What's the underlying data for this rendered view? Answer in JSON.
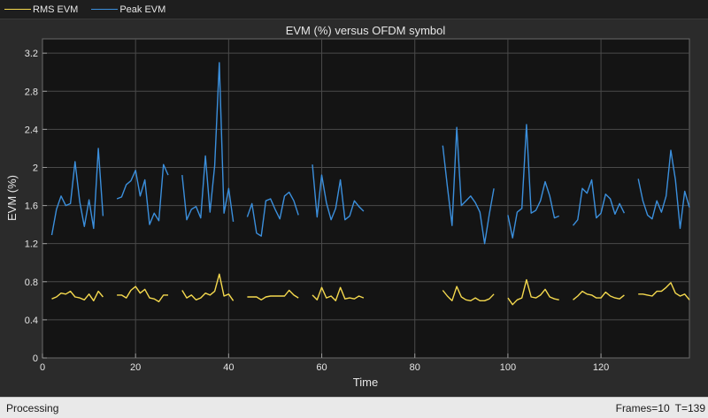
{
  "legend": {
    "items": [
      {
        "label": "RMS EVM",
        "color": "#f5d94e"
      },
      {
        "label": "Peak EVM",
        "color": "#3b8fdc"
      }
    ]
  },
  "status": {
    "state": "Processing",
    "frames": "Frames=10",
    "time": "T=139"
  },
  "chart_data": {
    "type": "line",
    "title": "EVM (%) versus OFDM symbol",
    "xlabel": "Time",
    "ylabel": "EVM (%)",
    "xlim": [
      0,
      139
    ],
    "ylim": [
      0,
      3.35
    ],
    "xticks": [
      0,
      20,
      40,
      60,
      80,
      100,
      120
    ],
    "yticks": [
      0,
      0.4,
      0.8,
      1.2,
      1.6,
      2,
      2.4,
      2.8,
      3.2
    ],
    "grid": true,
    "background": "#141414",
    "series": [
      {
        "name": "RMS EVM",
        "color": "#f5d94e",
        "segments": [
          [
            [
              2,
              0.62
            ],
            [
              3,
              0.64
            ],
            [
              4,
              0.68
            ],
            [
              5,
              0.67
            ],
            [
              6,
              0.7
            ],
            [
              7,
              0.64
            ],
            [
              8,
              0.63
            ],
            [
              9,
              0.61
            ],
            [
              10,
              0.67
            ],
            [
              11,
              0.6
            ],
            [
              12,
              0.7
            ],
            [
              13,
              0.64
            ]
          ],
          [
            [
              16,
              0.66
            ],
            [
              17,
              0.66
            ],
            [
              18,
              0.63
            ],
            [
              19,
              0.71
            ],
            [
              20,
              0.75
            ],
            [
              21,
              0.68
            ],
            [
              22,
              0.72
            ],
            [
              23,
              0.63
            ],
            [
              24,
              0.62
            ],
            [
              25,
              0.59
            ],
            [
              26,
              0.66
            ],
            [
              27,
              0.66
            ]
          ],
          [
            [
              30,
              0.71
            ],
            [
              31,
              0.63
            ],
            [
              32,
              0.66
            ],
            [
              33,
              0.61
            ],
            [
              34,
              0.63
            ],
            [
              35,
              0.68
            ],
            [
              36,
              0.66
            ],
            [
              37,
              0.7
            ],
            [
              38,
              0.88
            ],
            [
              39,
              0.65
            ],
            [
              40,
              0.67
            ],
            [
              41,
              0.6
            ]
          ],
          [
            [
              44,
              0.64
            ],
            [
              45,
              0.64
            ],
            [
              46,
              0.64
            ],
            [
              47,
              0.61
            ],
            [
              48,
              0.64
            ],
            [
              49,
              0.65
            ],
            [
              50,
              0.65
            ],
            [
              51,
              0.65
            ],
            [
              52,
              0.65
            ],
            [
              53,
              0.71
            ],
            [
              54,
              0.66
            ],
            [
              55,
              0.63
            ]
          ],
          [
            [
              58,
              0.66
            ],
            [
              59,
              0.61
            ],
            [
              60,
              0.74
            ],
            [
              61,
              0.63
            ],
            [
              62,
              0.65
            ],
            [
              63,
              0.6
            ],
            [
              64,
              0.74
            ],
            [
              65,
              0.62
            ],
            [
              66,
              0.63
            ],
            [
              67,
              0.62
            ],
            [
              68,
              0.65
            ],
            [
              69,
              0.63
            ]
          ],
          [
            [
              86,
              0.71
            ],
            [
              87,
              0.65
            ],
            [
              88,
              0.6
            ],
            [
              89,
              0.75
            ],
            [
              90,
              0.64
            ],
            [
              91,
              0.61
            ],
            [
              92,
              0.6
            ],
            [
              93,
              0.63
            ],
            [
              94,
              0.6
            ],
            [
              95,
              0.6
            ],
            [
              96,
              0.62
            ],
            [
              97,
              0.67
            ]
          ],
          [
            [
              100,
              0.63
            ],
            [
              101,
              0.56
            ],
            [
              102,
              0.61
            ],
            [
              103,
              0.63
            ],
            [
              104,
              0.82
            ],
            [
              105,
              0.64
            ],
            [
              106,
              0.63
            ],
            [
              107,
              0.66
            ],
            [
              108,
              0.72
            ],
            [
              109,
              0.64
            ],
            [
              110,
              0.62
            ],
            [
              111,
              0.61
            ]
          ],
          [
            [
              114,
              0.61
            ],
            [
              115,
              0.65
            ],
            [
              116,
              0.7
            ],
            [
              117,
              0.67
            ],
            [
              118,
              0.66
            ],
            [
              119,
              0.63
            ],
            [
              120,
              0.63
            ],
            [
              121,
              0.69
            ],
            [
              122,
              0.65
            ],
            [
              123,
              0.63
            ],
            [
              124,
              0.62
            ],
            [
              125,
              0.66
            ]
          ],
          [
            [
              128,
              0.67
            ],
            [
              129,
              0.67
            ],
            [
              130,
              0.66
            ],
            [
              131,
              0.65
            ],
            [
              132,
              0.7
            ],
            [
              133,
              0.7
            ],
            [
              134,
              0.74
            ],
            [
              135,
              0.79
            ],
            [
              136,
              0.68
            ],
            [
              137,
              0.65
            ],
            [
              138,
              0.67
            ],
            [
              139,
              0.61
            ]
          ]
        ]
      },
      {
        "name": "Peak EVM",
        "color": "#3b8fdc",
        "segments": [
          [
            [
              2,
              1.29
            ],
            [
              3,
              1.56
            ],
            [
              4,
              1.7
            ],
            [
              5,
              1.6
            ],
            [
              6,
              1.62
            ],
            [
              7,
              2.06
            ],
            [
              8,
              1.64
            ],
            [
              9,
              1.38
            ],
            [
              10,
              1.66
            ],
            [
              11,
              1.36
            ],
            [
              12,
              2.2
            ],
            [
              13,
              1.49
            ]
          ],
          [
            [
              16,
              1.67
            ],
            [
              17,
              1.69
            ],
            [
              18,
              1.82
            ],
            [
              19,
              1.86
            ],
            [
              20,
              1.97
            ],
            [
              21,
              1.7
            ],
            [
              22,
              1.87
            ],
            [
              23,
              1.4
            ],
            [
              24,
              1.52
            ],
            [
              25,
              1.44
            ],
            [
              26,
              2.03
            ],
            [
              27,
              1.92
            ]
          ],
          [
            [
              30,
              1.92
            ],
            [
              31,
              1.45
            ],
            [
              32,
              1.56
            ],
            [
              33,
              1.59
            ],
            [
              34,
              1.47
            ],
            [
              35,
              2.12
            ],
            [
              36,
              1.53
            ],
            [
              37,
              2.02
            ],
            [
              38,
              3.1
            ],
            [
              39,
              1.52
            ],
            [
              40,
              1.78
            ],
            [
              41,
              1.43
            ]
          ],
          [
            [
              44,
              1.48
            ],
            [
              45,
              1.62
            ],
            [
              46,
              1.31
            ],
            [
              47,
              1.28
            ],
            [
              48,
              1.65
            ],
            [
              49,
              1.67
            ],
            [
              50,
              1.56
            ],
            [
              51,
              1.46
            ],
            [
              52,
              1.7
            ],
            [
              53,
              1.74
            ],
            [
              54,
              1.65
            ],
            [
              55,
              1.5
            ]
          ],
          [
            [
              58,
              2.03
            ],
            [
              59,
              1.48
            ],
            [
              60,
              1.92
            ],
            [
              61,
              1.63
            ],
            [
              62,
              1.45
            ],
            [
              63,
              1.57
            ],
            [
              64,
              1.87
            ],
            [
              65,
              1.45
            ],
            [
              66,
              1.49
            ],
            [
              67,
              1.65
            ],
            [
              68,
              1.59
            ],
            [
              69,
              1.54
            ]
          ],
          [
            [
              86,
              2.23
            ],
            [
              87,
              1.8
            ],
            [
              88,
              1.39
            ],
            [
              89,
              2.42
            ],
            [
              90,
              1.6
            ],
            [
              91,
              1.65
            ],
            [
              92,
              1.7
            ],
            [
              93,
              1.63
            ],
            [
              94,
              1.53
            ],
            [
              95,
              1.2
            ],
            [
              96,
              1.51
            ],
            [
              97,
              1.78
            ]
          ],
          [
            [
              100,
              1.5
            ],
            [
              101,
              1.26
            ],
            [
              102,
              1.53
            ],
            [
              103,
              1.57
            ],
            [
              104,
              2.45
            ],
            [
              105,
              1.52
            ],
            [
              106,
              1.55
            ],
            [
              107,
              1.65
            ],
            [
              108,
              1.85
            ],
            [
              109,
              1.7
            ],
            [
              110,
              1.47
            ],
            [
              111,
              1.49
            ]
          ],
          [
            [
              114,
              1.39
            ],
            [
              115,
              1.45
            ],
            [
              116,
              1.78
            ],
            [
              117,
              1.73
            ],
            [
              118,
              1.87
            ],
            [
              119,
              1.47
            ],
            [
              120,
              1.52
            ],
            [
              121,
              1.72
            ],
            [
              122,
              1.67
            ],
            [
              123,
              1.51
            ],
            [
              124,
              1.62
            ],
            [
              125,
              1.52
            ]
          ],
          [
            [
              128,
              1.88
            ],
            [
              129,
              1.65
            ],
            [
              130,
              1.5
            ],
            [
              131,
              1.46
            ],
            [
              132,
              1.65
            ],
            [
              133,
              1.53
            ],
            [
              134,
              1.7
            ],
            [
              135,
              2.18
            ],
            [
              136,
              1.87
            ],
            [
              137,
              1.36
            ],
            [
              138,
              1.75
            ],
            [
              139,
              1.58
            ]
          ]
        ]
      }
    ]
  }
}
